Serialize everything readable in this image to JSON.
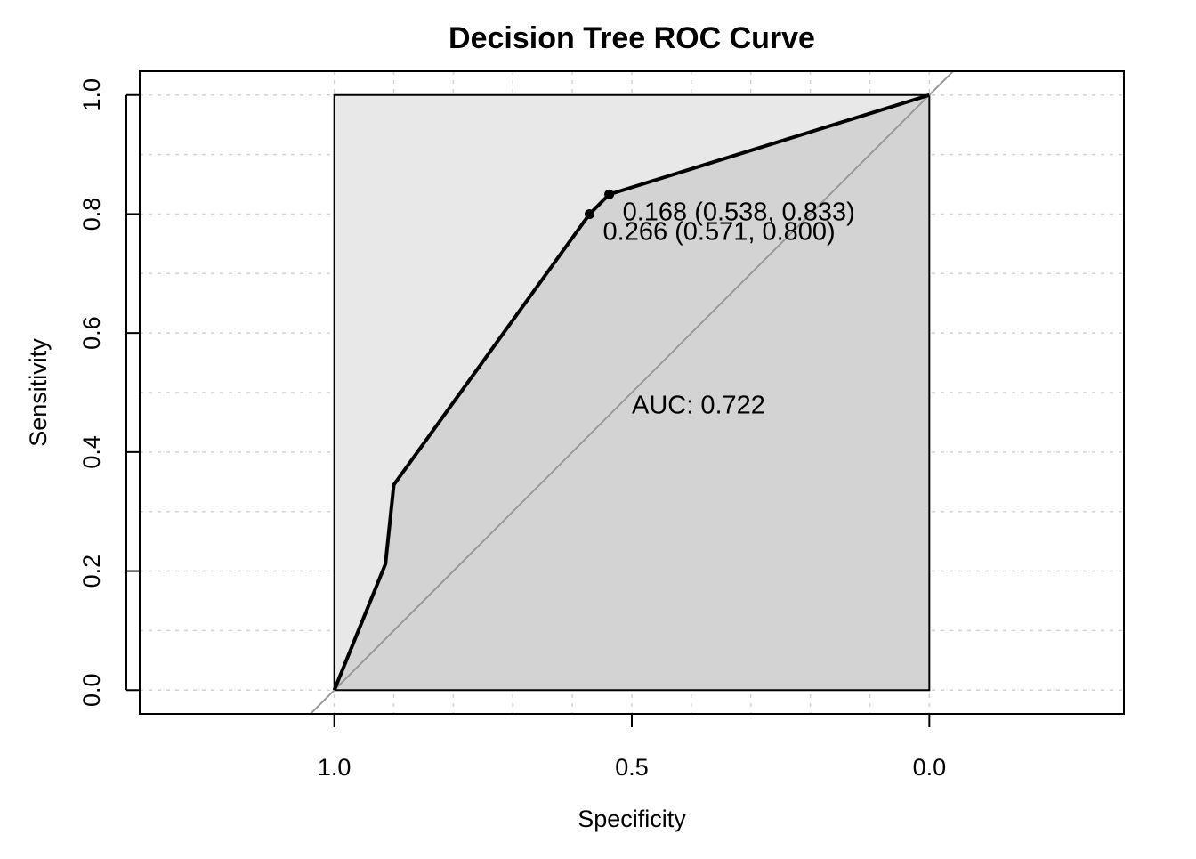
{
  "chart_data": {
    "type": "line",
    "title": "Decision Tree ROC Curve",
    "xlabel": "Specificity",
    "ylabel": "Sensitivity",
    "x_reversed": true,
    "xlim": [
      1.327,
      -0.327
    ],
    "ylim": [
      -0.04,
      1.04
    ],
    "x_ticks": [
      1.0,
      0.5,
      0.0
    ],
    "x_tick_labels": [
      "1.0",
      "0.5",
      "0.0"
    ],
    "y_ticks": [
      0.0,
      0.2,
      0.4,
      0.6,
      0.8,
      1.0
    ],
    "y_tick_labels": [
      "0.0",
      "0.2",
      "0.4",
      "0.6",
      "0.8",
      "1.0"
    ],
    "grid": true,
    "grid_x": [
      1.0,
      0.9,
      0.8,
      0.7,
      0.6,
      0.5,
      0.4,
      0.3,
      0.2,
      0.1,
      0.0
    ],
    "grid_y": [
      0.0,
      0.1,
      0.2,
      0.3,
      0.4,
      0.5,
      0.6,
      0.7,
      0.8,
      0.9,
      1.0
    ],
    "series": [
      {
        "name": "ROC",
        "specificity": [
          1.0,
          0.914,
          0.9,
          0.571,
          0.538,
          0.0
        ],
        "sensitivity": [
          0.0,
          0.212,
          0.345,
          0.8,
          0.833,
          1.0
        ]
      }
    ],
    "reference_line": {
      "name": "chance diagonal",
      "intercept": 1,
      "slope": -1
    },
    "highlighted_points": [
      {
        "threshold": "0.168",
        "specificity": 0.538,
        "sensitivity": 0.833,
        "label": "0.168 (0.538, 0.833)"
      },
      {
        "threshold": "0.266",
        "specificity": 0.571,
        "sensitivity": 0.8,
        "label": "0.266 (0.571, 0.800)"
      }
    ],
    "auc": 0.722,
    "auc_label": "AUC: 0.722",
    "colors": {
      "auc_polygon": "#e8e8e8",
      "area_under_curve": "#d3d3d3",
      "curve": "#000000",
      "diagonal": "#999999",
      "grid": "#d3d3d3"
    }
  }
}
